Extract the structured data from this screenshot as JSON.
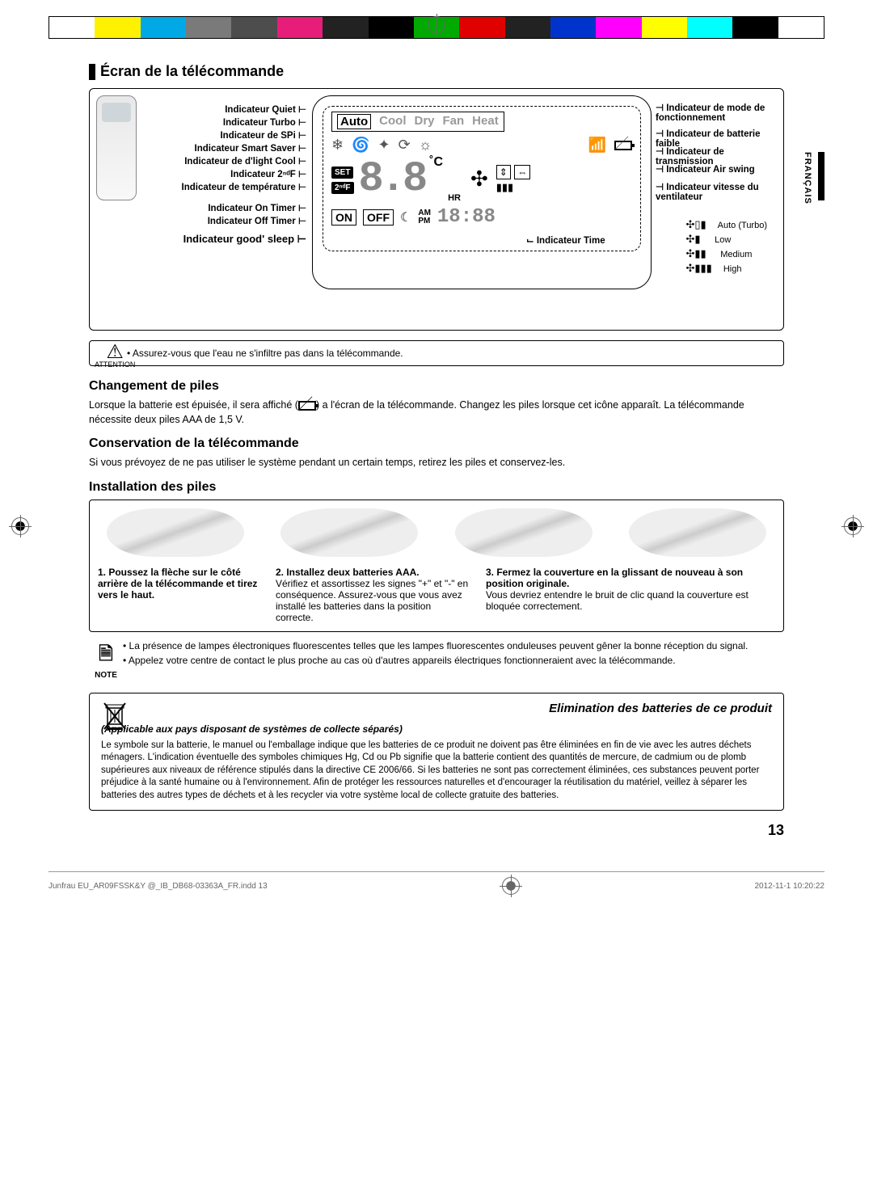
{
  "colorbar": [
    "#ffffff",
    "#fff200",
    "#00a9e6",
    "#7a7a7a",
    "#4d4d4d",
    "#e61e7a",
    "#222222",
    "#000000",
    "#00aa00",
    "#e00000",
    "#222222",
    "#0033cc",
    "#ff00ff",
    "#ffff00",
    "#00ffff",
    "#000000",
    "#ffffff"
  ],
  "section_title": "Écran de la télécommande",
  "lang_tab": "FRANÇAIS",
  "left_labels": {
    "quiet": "Indicateur Quiet",
    "turbo": "Indicateur Turbo",
    "spi": "Indicateur de SPi",
    "smart": "Indicateur Smart Saver",
    "dlight": "Indicateur de d'light Cool",
    "f2": "Indicateur 2ⁿᵈF",
    "temp": "Indicateur de température",
    "ontimer": "Indicateur On Timer",
    "offtimer": "Indicateur Off Timer",
    "goodsleep": "Indicateur good' sleep"
  },
  "right_labels": {
    "mode": "Indicateur de mode de fonctionnement",
    "lowbatt": "Indicateur de batterie faible",
    "transmit": "Indicateur de transmission",
    "airswing": "Indicateur Air swing",
    "fanspeed": "Indicateur vitesse du ventilateur",
    "time": "Indicateur Time"
  },
  "modes": {
    "auto": "Auto",
    "cool": "Cool",
    "dry": "Dry",
    "fan": "Fan",
    "heat": "Heat"
  },
  "lcd": {
    "set": "SET",
    "f2": "2ⁿᵈF",
    "on": "ON",
    "off": "OFF",
    "am": "AM",
    "pm": "PM",
    "hr": "HR",
    "c": "˚C",
    "temp": "8.8",
    "time": "18:88"
  },
  "fan_legend": {
    "auto": "Auto (Turbo)",
    "low": "Low",
    "medium": "Medium",
    "high": "High"
  },
  "attention": {
    "label": "ATTENTION",
    "text": "Assurez-vous que l'eau ne s'infiltre pas dans la télécommande."
  },
  "batteries": {
    "heading": "Changement de piles",
    "p1a": "Lorsque la batterie est épuisée, il sera affiché (",
    "p1b": ") a l'écran de la télécommande. Changez les piles lorsque cet icône apparaît. La télécommande nécessite deux piles AAA de 1,5 V."
  },
  "storage": {
    "heading": "Conservation de la télécommande",
    "text": "Si vous prévoyez de ne pas utiliser le système pendant un certain temps, retirez les piles et conservez-les."
  },
  "install": {
    "heading": "Installation des piles",
    "step1_b": "1.  Poussez la flèche sur le côté arrière de la télécommande et tirez vers le haut.",
    "step2_b": "2.  Installez deux batteries AAA.",
    "step2_t": "Vérifiez et assortissez les signes \"+\" et \"-\" en conséquence. Assurez-vous que vous avez installé les batteries dans la position correcte.",
    "step3_b": "3.  Fermez la couverture en la glissant de nouveau à son position originale.",
    "step3_t": "Vous devriez entendre le bruit de clic quand la couverture est bloquée correctement."
  },
  "note": {
    "label": "NOTE",
    "l1": "La présence de lampes électroniques fluorescentes telles que les lampes fluorescentes onduleuses peuvent gêner la bonne réception du signal.",
    "l2": "Appelez votre centre de contact le plus proche au cas où d'autres appareils électriques fonctionneraient avec la télécommande."
  },
  "disposal": {
    "title": "Elimination des batteries de ce produit",
    "sub": "(Applicable aux pays disposant de systèmes de collecte séparés)",
    "body": "Le symbole sur la batterie, le manuel ou l'emballage indique que les batteries de ce produit ne doivent pas être éliminées en fin de vie avec les autres déchets ménagers. L'indication éventuelle des symboles chimiques Hg, Cd ou Pb signifie que la batterie contient des quantités de mercure, de cadmium ou de plomb supérieures aux niveaux de référence stipulés dans la directive CE 2006/66. Si les batteries ne sont pas correctement éliminées, ces substances peuvent porter préjudice à la santé humaine ou à l'environnement. Afin de protéger les ressources naturelles et d'encourager la réutilisation du matériel, veillez à séparer les batteries des autres types de déchets et à les recycler via votre système local de collecte gratuite des batteries."
  },
  "page_num": "13",
  "footer": {
    "file": "Junfrau EU_AR09FSSK&Y @_IB_DB68-03363A_FR.indd   13",
    "date": "2012-11-1   10:20:22"
  }
}
